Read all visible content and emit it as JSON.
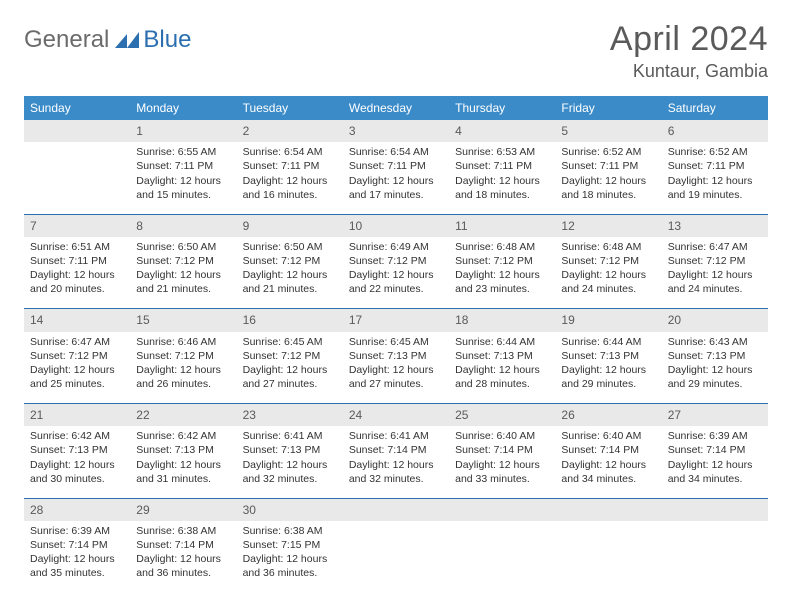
{
  "brand": {
    "general": "General",
    "blue": "Blue"
  },
  "title": "April 2024",
  "location": "Kuntaur, Gambia",
  "colors": {
    "header_bg": "#3b8bc9",
    "header_text": "#ffffff",
    "daynum_bg": "#e9e9e9",
    "daynum_text": "#5a5a5a",
    "divider": "#2c6fb0",
    "body_text": "#333333",
    "logo_gray": "#6b6b6b",
    "logo_blue": "#2c6fb0"
  },
  "weekdays": [
    "Sunday",
    "Monday",
    "Tuesday",
    "Wednesday",
    "Thursday",
    "Friday",
    "Saturday"
  ],
  "labels": {
    "sunrise": "Sunrise:",
    "sunset": "Sunset:",
    "daylight": "Daylight:"
  },
  "weeks": [
    [
      null,
      {
        "n": "1",
        "sr": "6:55 AM",
        "ss": "7:11 PM",
        "dl": "12 hours and 15 minutes."
      },
      {
        "n": "2",
        "sr": "6:54 AM",
        "ss": "7:11 PM",
        "dl": "12 hours and 16 minutes."
      },
      {
        "n": "3",
        "sr": "6:54 AM",
        "ss": "7:11 PM",
        "dl": "12 hours and 17 minutes."
      },
      {
        "n": "4",
        "sr": "6:53 AM",
        "ss": "7:11 PM",
        "dl": "12 hours and 18 minutes."
      },
      {
        "n": "5",
        "sr": "6:52 AM",
        "ss": "7:11 PM",
        "dl": "12 hours and 18 minutes."
      },
      {
        "n": "6",
        "sr": "6:52 AM",
        "ss": "7:11 PM",
        "dl": "12 hours and 19 minutes."
      }
    ],
    [
      {
        "n": "7",
        "sr": "6:51 AM",
        "ss": "7:11 PM",
        "dl": "12 hours and 20 minutes."
      },
      {
        "n": "8",
        "sr": "6:50 AM",
        "ss": "7:12 PM",
        "dl": "12 hours and 21 minutes."
      },
      {
        "n": "9",
        "sr": "6:50 AM",
        "ss": "7:12 PM",
        "dl": "12 hours and 21 minutes."
      },
      {
        "n": "10",
        "sr": "6:49 AM",
        "ss": "7:12 PM",
        "dl": "12 hours and 22 minutes."
      },
      {
        "n": "11",
        "sr": "6:48 AM",
        "ss": "7:12 PM",
        "dl": "12 hours and 23 minutes."
      },
      {
        "n": "12",
        "sr": "6:48 AM",
        "ss": "7:12 PM",
        "dl": "12 hours and 24 minutes."
      },
      {
        "n": "13",
        "sr": "6:47 AM",
        "ss": "7:12 PM",
        "dl": "12 hours and 24 minutes."
      }
    ],
    [
      {
        "n": "14",
        "sr": "6:47 AM",
        "ss": "7:12 PM",
        "dl": "12 hours and 25 minutes."
      },
      {
        "n": "15",
        "sr": "6:46 AM",
        "ss": "7:12 PM",
        "dl": "12 hours and 26 minutes."
      },
      {
        "n": "16",
        "sr": "6:45 AM",
        "ss": "7:12 PM",
        "dl": "12 hours and 27 minutes."
      },
      {
        "n": "17",
        "sr": "6:45 AM",
        "ss": "7:13 PM",
        "dl": "12 hours and 27 minutes."
      },
      {
        "n": "18",
        "sr": "6:44 AM",
        "ss": "7:13 PM",
        "dl": "12 hours and 28 minutes."
      },
      {
        "n": "19",
        "sr": "6:44 AM",
        "ss": "7:13 PM",
        "dl": "12 hours and 29 minutes."
      },
      {
        "n": "20",
        "sr": "6:43 AM",
        "ss": "7:13 PM",
        "dl": "12 hours and 29 minutes."
      }
    ],
    [
      {
        "n": "21",
        "sr": "6:42 AM",
        "ss": "7:13 PM",
        "dl": "12 hours and 30 minutes."
      },
      {
        "n": "22",
        "sr": "6:42 AM",
        "ss": "7:13 PM",
        "dl": "12 hours and 31 minutes."
      },
      {
        "n": "23",
        "sr": "6:41 AM",
        "ss": "7:13 PM",
        "dl": "12 hours and 32 minutes."
      },
      {
        "n": "24",
        "sr": "6:41 AM",
        "ss": "7:14 PM",
        "dl": "12 hours and 32 minutes."
      },
      {
        "n": "25",
        "sr": "6:40 AM",
        "ss": "7:14 PM",
        "dl": "12 hours and 33 minutes."
      },
      {
        "n": "26",
        "sr": "6:40 AM",
        "ss": "7:14 PM",
        "dl": "12 hours and 34 minutes."
      },
      {
        "n": "27",
        "sr": "6:39 AM",
        "ss": "7:14 PM",
        "dl": "12 hours and 34 minutes."
      }
    ],
    [
      {
        "n": "28",
        "sr": "6:39 AM",
        "ss": "7:14 PM",
        "dl": "12 hours and 35 minutes."
      },
      {
        "n": "29",
        "sr": "6:38 AM",
        "ss": "7:14 PM",
        "dl": "12 hours and 36 minutes."
      },
      {
        "n": "30",
        "sr": "6:38 AM",
        "ss": "7:15 PM",
        "dl": "12 hours and 36 minutes."
      },
      null,
      null,
      null,
      null
    ]
  ]
}
